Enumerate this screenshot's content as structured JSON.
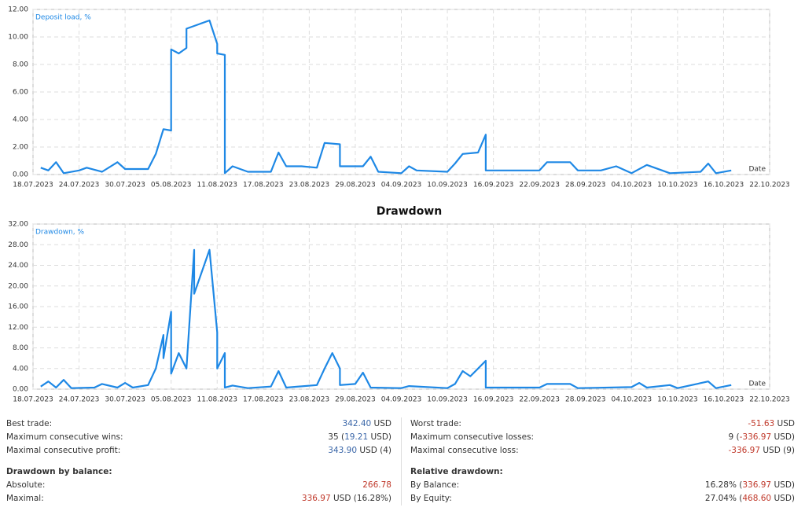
{
  "chart_data": [
    {
      "type": "line",
      "x_label": "Date",
      "xlim": [
        "18.07.2023",
        "22.10.2023"
      ],
      "xticks": [
        "18.07.2023",
        "24.07.2023",
        "30.07.2023",
        "05.08.2023",
        "11.08.2023",
        "17.08.2023",
        "23.08.2023",
        "29.08.2023",
        "04.09.2023",
        "10.09.2023",
        "16.09.2023",
        "22.09.2023",
        "28.09.2023",
        "04.10.2023",
        "10.10.2023",
        "16.10.2023",
        "22.10.2023"
      ],
      "ylim": [
        0,
        12
      ],
      "yticks": [
        {
          "value": 0,
          "label": "0.00"
        },
        {
          "value": 2,
          "label": "2.00"
        },
        {
          "value": 4,
          "label": "4.00"
        },
        {
          "value": 6,
          "label": "6.00"
        },
        {
          "value": 8,
          "label": "8.00"
        },
        {
          "value": 10,
          "label": "10.00"
        },
        {
          "value": 12,
          "label": "12.00"
        }
      ],
      "grid": true,
      "x": [
        "19.07.2023",
        "20.07.2023",
        "21.07.2023",
        "22.07.2023",
        "24.07.2023",
        "25.07.2023",
        "27.07.2023",
        "29.07.2023",
        "30.07.2023",
        "02.08.2023",
        "03.08.2023",
        "04.08.2023",
        "05.08.2023",
        "05.08.2023",
        "06.08.2023",
        "07.08.2023",
        "07.08.2023",
        "10.08.2023",
        "11.08.2023",
        "11.08.2023",
        "12.08.2023",
        "12.08.2023",
        "13.08.2023",
        "15.08.2023",
        "18.08.2023",
        "19.08.2023",
        "20.08.2023",
        "22.08.2023",
        "24.08.2023",
        "25.08.2023",
        "27.08.2023",
        "27.08.2023",
        "30.08.2023",
        "31.08.2023",
        "01.09.2023",
        "04.09.2023",
        "05.09.2023",
        "06.09.2023",
        "10.09.2023",
        "11.09.2023",
        "12.09.2023",
        "14.09.2023",
        "15.09.2023",
        "15.09.2023",
        "17.09.2023",
        "22.09.2023",
        "23.09.2023",
        "26.09.2023",
        "27.09.2023",
        "30.09.2023",
        "02.10.2023",
        "04.10.2023",
        "06.10.2023",
        "09.10.2023",
        "13.10.2023",
        "14.10.2023",
        "15.10.2023",
        "17.10.2023"
      ],
      "series": [
        {
          "name": "Deposit load, %",
          "color": "#1e88e5",
          "values": [
            0.5,
            0.3,
            0.9,
            0.1,
            0.3,
            0.5,
            0.2,
            0.9,
            0.4,
            0.4,
            1.5,
            3.3,
            3.2,
            9.1,
            8.8,
            9.2,
            10.6,
            11.2,
            9.5,
            8.8,
            8.7,
            0.1,
            0.6,
            0.2,
            0.2,
            1.6,
            0.6,
            0.6,
            0.5,
            2.3,
            2.2,
            0.6,
            0.6,
            1.3,
            0.2,
            0.1,
            0.6,
            0.3,
            0.2,
            0.8,
            1.5,
            1.6,
            2.9,
            0.3,
            0.3,
            0.3,
            0.9,
            0.9,
            0.3,
            0.3,
            0.6,
            0.1,
            0.7,
            0.1,
            0.2,
            0.8,
            0.1,
            0.3
          ]
        }
      ]
    },
    {
      "type": "line",
      "title": "Drawdown",
      "x_label": "Date",
      "xlim": [
        "18.07.2023",
        "22.10.2023"
      ],
      "xticks": [
        "18.07.2023",
        "24.07.2023",
        "30.07.2023",
        "05.08.2023",
        "11.08.2023",
        "17.08.2023",
        "23.08.2023",
        "29.08.2023",
        "04.09.2023",
        "10.09.2023",
        "16.09.2023",
        "22.09.2023",
        "28.09.2023",
        "04.10.2023",
        "10.10.2023",
        "16.10.2023",
        "22.10.2023"
      ],
      "ylim": [
        0,
        32
      ],
      "yticks": [
        {
          "value": 0,
          "label": "0.00"
        },
        {
          "value": 4,
          "label": "4.00"
        },
        {
          "value": 8,
          "label": "8.00"
        },
        {
          "value": 12,
          "label": "12.00"
        },
        {
          "value": 16,
          "label": "16.00"
        },
        {
          "value": 20,
          "label": "20.00"
        },
        {
          "value": 24,
          "label": "24.00"
        },
        {
          "value": 28,
          "label": "28.00"
        },
        {
          "value": 32,
          "label": "32.00"
        }
      ],
      "grid": true,
      "x": [
        "19.07.2023",
        "20.07.2023",
        "21.07.2023",
        "22.07.2023",
        "23.07.2023",
        "26.07.2023",
        "27.07.2023",
        "29.07.2023",
        "30.07.2023",
        "31.07.2023",
        "02.08.2023",
        "03.08.2023",
        "04.08.2023",
        "04.08.2023",
        "05.08.2023",
        "05.08.2023",
        "06.08.2023",
        "07.08.2023",
        "08.08.2023",
        "08.08.2023",
        "10.08.2023",
        "11.08.2023",
        "11.08.2023",
        "12.08.2023",
        "12.08.2023",
        "13.08.2023",
        "15.08.2023",
        "18.08.2023",
        "19.08.2023",
        "20.08.2023",
        "24.08.2023",
        "25.08.2023",
        "26.08.2023",
        "27.08.2023",
        "27.08.2023",
        "29.08.2023",
        "30.08.2023",
        "31.08.2023",
        "04.09.2023",
        "05.09.2023",
        "10.09.2023",
        "11.09.2023",
        "12.09.2023",
        "13.09.2023",
        "14.09.2023",
        "15.09.2023",
        "15.09.2023",
        "22.09.2023",
        "23.09.2023",
        "26.09.2023",
        "27.09.2023",
        "04.10.2023",
        "05.10.2023",
        "06.10.2023",
        "09.10.2023",
        "10.10.2023",
        "14.10.2023",
        "15.10.2023",
        "17.10.2023"
      ],
      "series": [
        {
          "name": "Drawdown, %",
          "color": "#1e88e5",
          "values": [
            0.5,
            1.5,
            0.3,
            1.8,
            0.2,
            0.3,
            1.0,
            0.3,
            1.2,
            0.3,
            0.8,
            4,
            10.5,
            6,
            15,
            3,
            7,
            4,
            27,
            18.5,
            27,
            11,
            4,
            7,
            0.3,
            0.7,
            0.2,
            0.5,
            3.5,
            0.3,
            0.8,
            4,
            7,
            4,
            0.8,
            1,
            3.2,
            0.3,
            0.2,
            0.6,
            0.2,
            1,
            3.5,
            2.5,
            4,
            5.5,
            0.3,
            0.3,
            1,
            1,
            0.2,
            0.4,
            1.2,
            0.3,
            0.8,
            0.2,
            1.5,
            0.2,
            0.8
          ]
        }
      ]
    }
  ],
  "stats": {
    "left": [
      {
        "label": "Best trade:",
        "value": [
          {
            "text": "342.40",
            "color": "#3a66a8"
          },
          {
            "text": " USD"
          }
        ]
      },
      {
        "label": "Maximum consecutive wins:",
        "value": [
          {
            "text": "35 ("
          },
          {
            "text": "19.21",
            "color": "#3a66a8"
          },
          {
            "text": " USD)"
          }
        ]
      },
      {
        "label": "Maximal consecutive profit:",
        "value": [
          {
            "text": "343.90",
            "color": "#3a66a8"
          },
          {
            "text": " USD (4)"
          }
        ]
      },
      {
        "label": "Drawdown by balance:",
        "heading": true
      },
      {
        "label": "Absolute:",
        "value": [
          {
            "text": "266.78",
            "color": "#c0392b"
          }
        ]
      },
      {
        "label": "Maximal:",
        "value": [
          {
            "text": "336.97",
            "color": "#c0392b"
          },
          {
            "text": " USD (16.28%)"
          }
        ]
      }
    ],
    "right": [
      {
        "label": "Worst trade:",
        "value": [
          {
            "text": "-51.63",
            "color": "#c0392b"
          },
          {
            "text": " USD"
          }
        ]
      },
      {
        "label": "Maximum consecutive losses:",
        "value": [
          {
            "text": "9 ("
          },
          {
            "text": "-336.97",
            "color": "#c0392b"
          },
          {
            "text": " USD)"
          }
        ]
      },
      {
        "label": "Maximal consecutive loss:",
        "value": [
          {
            "text": "-336.97",
            "color": "#c0392b"
          },
          {
            "text": " USD (9)"
          }
        ]
      },
      {
        "label": "Relative drawdown:",
        "heading": true
      },
      {
        "label": "By Balance:",
        "value": [
          {
            "text": "16.28% ("
          },
          {
            "text": "336.97",
            "color": "#c0392b"
          },
          {
            "text": " USD)"
          }
        ]
      },
      {
        "label": "By Equity:",
        "value": [
          {
            "text": "27.04% ("
          },
          {
            "text": "468.60",
            "color": "#c0392b"
          },
          {
            "text": " USD)"
          }
        ]
      }
    ]
  }
}
